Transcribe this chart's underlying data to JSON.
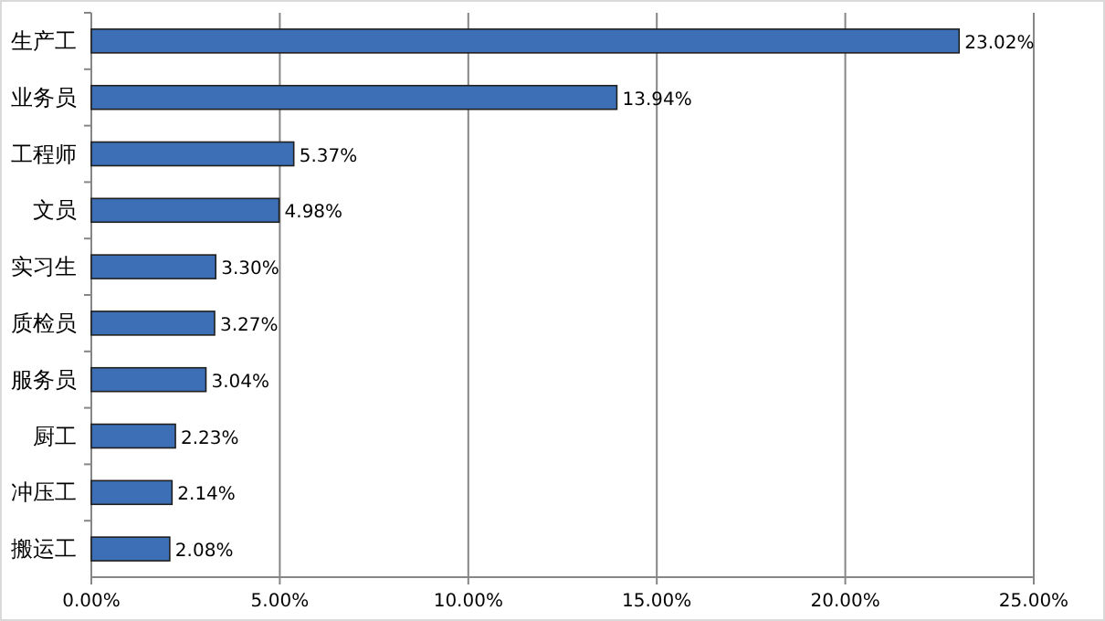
{
  "chart_data": {
    "type": "bar",
    "orientation": "horizontal",
    "categories": [
      "生产工",
      "业务员",
      "工程师",
      "文员",
      "实习生",
      "质检员",
      "服务员",
      "厨工",
      "冲压工",
      "搬运工"
    ],
    "values": [
      23.02,
      13.94,
      5.37,
      4.98,
      3.3,
      3.27,
      3.04,
      2.23,
      2.14,
      2.08
    ],
    "value_labels": [
      "23.02%",
      "13.94%",
      "5.37%",
      "4.98%",
      "3.30%",
      "3.27%",
      "3.04%",
      "2.23%",
      "2.14%",
      "2.08%"
    ],
    "color": "#3d6fb6",
    "xlim": [
      0,
      25
    ],
    "xticks": [
      {
        "value": 0,
        "label": "0.00%"
      },
      {
        "value": 5,
        "label": "5.00%"
      },
      {
        "value": 10,
        "label": "10.00%"
      },
      {
        "value": 15,
        "label": "15.00%"
      },
      {
        "value": 20,
        "label": "20.00%"
      },
      {
        "value": 25,
        "label": "25.00%"
      }
    ],
    "grid": "x"
  }
}
